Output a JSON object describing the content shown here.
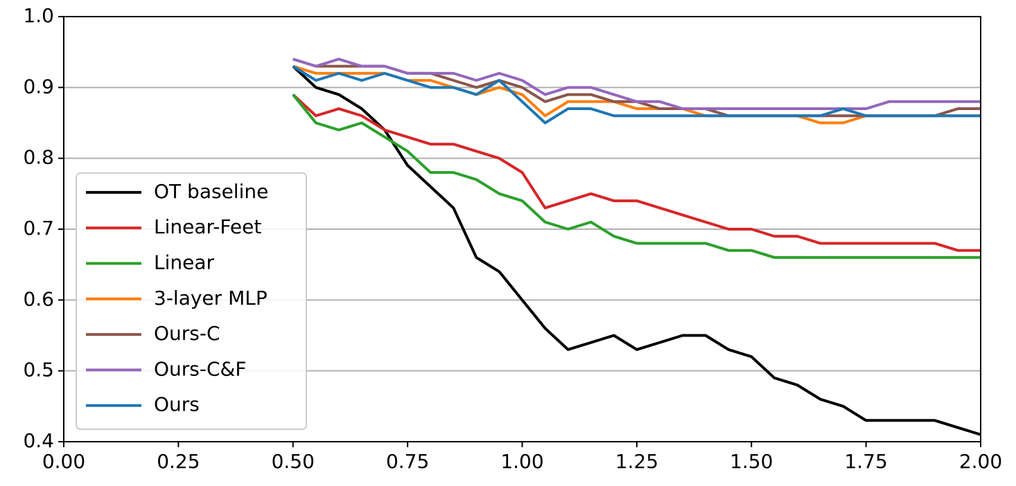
{
  "chart_data": {
    "type": "line",
    "x": [
      0.5,
      0.55,
      0.6,
      0.65,
      0.7,
      0.75,
      0.8,
      0.85,
      0.9,
      0.95,
      1.0,
      1.05,
      1.1,
      1.15,
      1.2,
      1.25,
      1.3,
      1.35,
      1.4,
      1.45,
      1.5,
      1.55,
      1.6,
      1.65,
      1.7,
      1.75,
      1.8,
      1.85,
      1.9,
      1.95,
      2.0
    ],
    "series": [
      {
        "name": "OT baseline",
        "color": "#000000",
        "values": [
          0.93,
          0.9,
          0.89,
          0.87,
          0.84,
          0.79,
          0.76,
          0.73,
          0.66,
          0.64,
          0.6,
          0.56,
          0.53,
          0.54,
          0.55,
          0.53,
          0.54,
          0.55,
          0.55,
          0.53,
          0.52,
          0.49,
          0.48,
          0.46,
          0.45,
          0.43,
          0.43,
          0.43,
          0.43,
          0.42,
          0.41
        ]
      },
      {
        "name": "Linear-Feet",
        "color": "#d62728",
        "values": [
          0.89,
          0.86,
          0.87,
          0.86,
          0.84,
          0.83,
          0.82,
          0.82,
          0.81,
          0.8,
          0.78,
          0.73,
          0.74,
          0.75,
          0.74,
          0.74,
          0.73,
          0.72,
          0.71,
          0.7,
          0.7,
          0.69,
          0.69,
          0.68,
          0.68,
          0.68,
          0.68,
          0.68,
          0.68,
          0.67,
          0.67
        ]
      },
      {
        "name": "Linear",
        "color": "#2ca02c",
        "values": [
          0.89,
          0.85,
          0.84,
          0.85,
          0.83,
          0.81,
          0.78,
          0.78,
          0.77,
          0.75,
          0.74,
          0.71,
          0.7,
          0.71,
          0.69,
          0.68,
          0.68,
          0.68,
          0.68,
          0.67,
          0.67,
          0.66,
          0.66,
          0.66,
          0.66,
          0.66,
          0.66,
          0.66,
          0.66,
          0.66,
          0.66
        ]
      },
      {
        "name": "3-layer MLP",
        "color": "#ff7f0e",
        "values": [
          0.93,
          0.92,
          0.92,
          0.92,
          0.92,
          0.91,
          0.91,
          0.9,
          0.89,
          0.9,
          0.89,
          0.86,
          0.88,
          0.88,
          0.88,
          0.87,
          0.87,
          0.87,
          0.86,
          0.86,
          0.86,
          0.86,
          0.86,
          0.85,
          0.85,
          0.86,
          0.86,
          0.86,
          0.86,
          0.86,
          0.86
        ]
      },
      {
        "name": "Ours-C",
        "color": "#8c564b",
        "values": [
          0.94,
          0.93,
          0.93,
          0.93,
          0.93,
          0.92,
          0.92,
          0.91,
          0.9,
          0.91,
          0.9,
          0.88,
          0.89,
          0.89,
          0.88,
          0.88,
          0.87,
          0.87,
          0.87,
          0.86,
          0.86,
          0.86,
          0.86,
          0.86,
          0.86,
          0.86,
          0.86,
          0.86,
          0.86,
          0.87,
          0.87
        ]
      },
      {
        "name": "Ours-C&F",
        "color": "#9467bd",
        "values": [
          0.94,
          0.93,
          0.94,
          0.93,
          0.93,
          0.92,
          0.92,
          0.92,
          0.91,
          0.92,
          0.91,
          0.89,
          0.9,
          0.9,
          0.89,
          0.88,
          0.88,
          0.87,
          0.87,
          0.87,
          0.87,
          0.87,
          0.87,
          0.87,
          0.87,
          0.87,
          0.88,
          0.88,
          0.88,
          0.88,
          0.88
        ]
      },
      {
        "name": "Ours",
        "color": "#1f77b4",
        "values": [
          0.93,
          0.91,
          0.92,
          0.91,
          0.92,
          0.91,
          0.9,
          0.9,
          0.89,
          0.91,
          0.88,
          0.85,
          0.87,
          0.87,
          0.86,
          0.86,
          0.86,
          0.86,
          0.86,
          0.86,
          0.86,
          0.86,
          0.86,
          0.86,
          0.87,
          0.86,
          0.86,
          0.86,
          0.86,
          0.86,
          0.86
        ]
      }
    ],
    "xlim": [
      0,
      2
    ],
    "ylim": [
      0.4,
      1
    ],
    "xticks": [
      {
        "value": 0,
        "label": "0.00"
      },
      {
        "value": 0.25,
        "label": "0.25"
      },
      {
        "value": 0.5,
        "label": "0.50"
      },
      {
        "value": 0.75,
        "label": "0.75"
      },
      {
        "value": 1,
        "label": "1.00"
      },
      {
        "value": 1.25,
        "label": "1.25"
      },
      {
        "value": 1.5,
        "label": "1.50"
      },
      {
        "value": 1.75,
        "label": "1.75"
      },
      {
        "value": 2,
        "label": "2.00"
      }
    ],
    "yticks": [
      0.4,
      0.5,
      0.6,
      0.7,
      0.8,
      0.9,
      {
        "value": 1,
        "label": "1.0"
      }
    ],
    "grid": "y",
    "legend": "lower left"
  }
}
